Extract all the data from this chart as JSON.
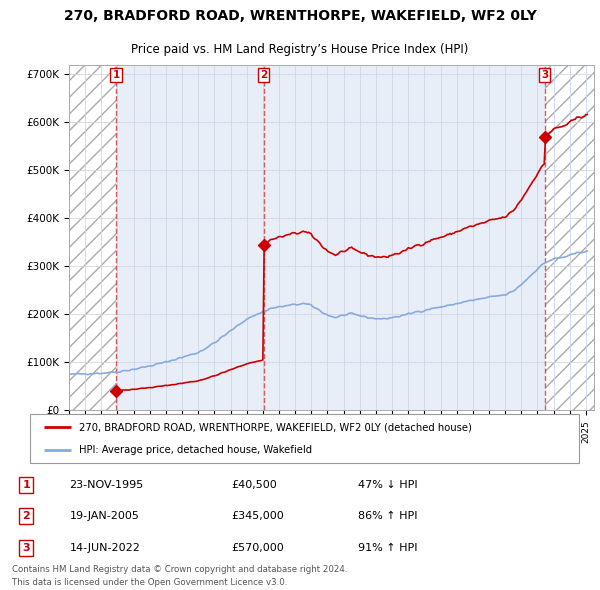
{
  "title": "270, BRADFORD ROAD, WRENTHORPE, WAKEFIELD, WF2 0LY",
  "subtitle": "Price paid vs. HM Land Registry’s House Price Index (HPI)",
  "sale_dates": [
    1995.92,
    2005.05,
    2022.45
  ],
  "sale_prices": [
    40500,
    345000,
    570000
  ],
  "sale_labels": [
    "1",
    "2",
    "3"
  ],
  "ylim": [
    0,
    720000
  ],
  "xlim_start": 1993.0,
  "xlim_end": 2025.5,
  "ytick_vals": [
    0,
    100000,
    200000,
    300000,
    400000,
    500000,
    600000,
    700000
  ],
  "ytick_labels": [
    "£0",
    "£100K",
    "£200K",
    "£300K",
    "£400K",
    "£500K",
    "£600K",
    "£700K"
  ],
  "hpi_color": "#88aadd",
  "property_color": "#cc0000",
  "grid_color": "#d0d8e8",
  "plot_bg": "#e8eef8",
  "hatch_bg": "#d8d8d8",
  "legend_property": "270, BRADFORD ROAD, WRENTHORPE, WAKEFIELD, WF2 0LY (detached house)",
  "legend_hpi": "HPI: Average price, detached house, Wakefield",
  "transactions": [
    {
      "label": "1",
      "date": "23-NOV-1995",
      "price": "£40,500",
      "hpi": "47% ↓ HPI"
    },
    {
      "label": "2",
      "date": "19-JAN-2005",
      "price": "£345,000",
      "hpi": "86% ↑ HPI"
    },
    {
      "label": "3",
      "date": "14-JUN-2022",
      "price": "£570,000",
      "hpi": "91% ↑ HPI"
    }
  ],
  "footer": "Contains HM Land Registry data © Crown copyright and database right 2024.\nThis data is licensed under the Open Government Licence v3.0.",
  "bg_color": "#ffffff"
}
